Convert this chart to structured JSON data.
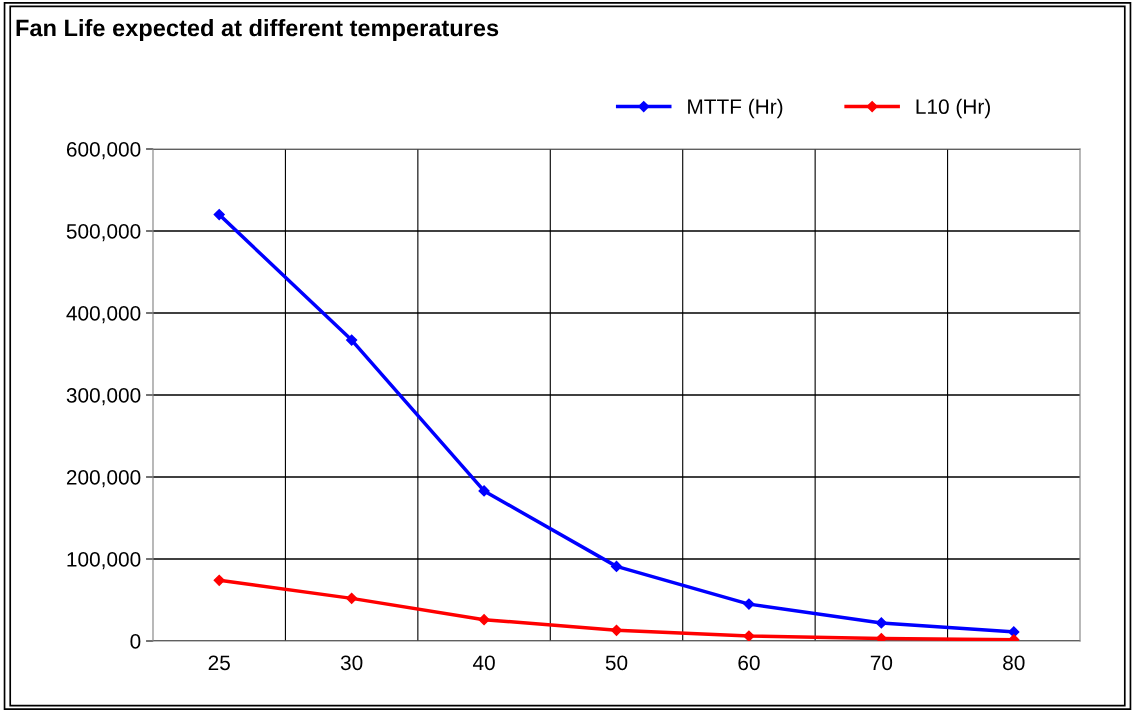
{
  "chart_data": {
    "type": "line",
    "title": "Fan Life expected at different temperatures",
    "categories": [
      "25",
      "30",
      "40",
      "50",
      "60",
      "70",
      "80"
    ],
    "series": [
      {
        "name": "MTTF (Hr)",
        "color": "#0000ff",
        "values": [
          520000,
          367000,
          183000,
          91000,
          45000,
          22000,
          11000
        ]
      },
      {
        "name": "L10 (Hr)",
        "color": "#ff0000",
        "values": [
          74000,
          52000,
          26000,
          13000,
          6000,
          3000,
          1500
        ]
      }
    ],
    "ylim": [
      0,
      600000
    ],
    "yticks": [
      {
        "value": 0,
        "label": "0"
      },
      {
        "value": 100000,
        "label": "100,000"
      },
      {
        "value": 200000,
        "label": "200,000"
      },
      {
        "value": 300000,
        "label": "300,000"
      },
      {
        "value": 400000,
        "label": "400,000"
      },
      {
        "value": 500000,
        "label": "500,000"
      },
      {
        "value": 600000,
        "label": "600,000"
      }
    ],
    "grid": true,
    "legend": "top right",
    "marker": "diamond",
    "line_style": "solid"
  }
}
